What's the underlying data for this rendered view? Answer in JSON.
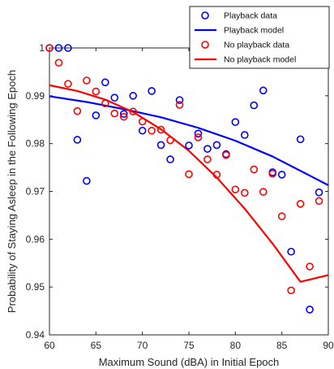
{
  "chart_data": {
    "type": "scatter",
    "xlabel": "Maximum Sound (dBA) in Initial Epoch",
    "ylabel": "Probability of Staying Asleep in the Following Epoch",
    "xlim": [
      60,
      90
    ],
    "ylim": [
      0.94,
      1.0
    ],
    "x_ticks": [
      60,
      65,
      70,
      75,
      80,
      85,
      90
    ],
    "y_ticks": [
      0.94,
      0.95,
      0.96,
      0.97,
      0.98,
      0.99,
      1.0
    ],
    "y_tick_labels": [
      "0.94",
      "0.95",
      "0.96",
      "0.97",
      "0.98",
      "0.99",
      "1"
    ],
    "legend_position": "top-right",
    "colors": {
      "playback": "#0000ff",
      "no_playback": "#ff0000"
    },
    "series": [
      {
        "name": "Playback data",
        "kind": "scatter",
        "color": "#0000ff",
        "points": [
          [
            60,
            1.0
          ],
          [
            61,
            1.0
          ],
          [
            62,
            1.0
          ],
          [
            63,
            0.9808
          ],
          [
            64,
            0.9722
          ],
          [
            65,
            0.9859
          ],
          [
            66,
            0.9928
          ],
          [
            67,
            0.9896
          ],
          [
            68,
            0.9862
          ],
          [
            69,
            0.99
          ],
          [
            70,
            0.9827
          ],
          [
            71,
            0.991
          ],
          [
            72,
            0.9797
          ],
          [
            73,
            0.9767
          ],
          [
            74,
            0.9891
          ],
          [
            75,
            0.9796
          ],
          [
            76,
            0.9821
          ],
          [
            77,
            0.9789
          ],
          [
            78,
            0.9797
          ],
          [
            79,
            0.9778
          ],
          [
            80,
            0.9845
          ],
          [
            81,
            0.9818
          ],
          [
            82,
            0.988
          ],
          [
            83,
            0.9911
          ],
          [
            84,
            0.974
          ],
          [
            85,
            0.9735
          ],
          [
            86,
            0.9574
          ],
          [
            87,
            0.9809
          ],
          [
            88,
            0.9453
          ],
          [
            89,
            0.9698
          ]
        ]
      },
      {
        "name": "Playback model",
        "kind": "line",
        "color": "#0000ff",
        "points": [
          [
            60,
            0.9899
          ],
          [
            64,
            0.9887
          ],
          [
            68,
            0.9872
          ],
          [
            72,
            0.9855
          ],
          [
            76,
            0.9833
          ],
          [
            80,
            0.9806
          ],
          [
            84,
            0.9773
          ],
          [
            88,
            0.9733
          ],
          [
            90,
            0.9713
          ]
        ]
      },
      {
        "name": "No playback data",
        "kind": "scatter",
        "color": "#ff0000",
        "points": [
          [
            60,
            1.0
          ],
          [
            61,
            0.9969
          ],
          [
            62,
            0.9925
          ],
          [
            63,
            0.9868
          ],
          [
            64,
            0.9932
          ],
          [
            65,
            0.9909
          ],
          [
            66,
            0.9884
          ],
          [
            67,
            0.9863
          ],
          [
            68,
            0.9856
          ],
          [
            69,
            0.9867
          ],
          [
            70,
            0.9846
          ],
          [
            71,
            0.9827
          ],
          [
            72,
            0.9829
          ],
          [
            73,
            0.9807
          ],
          [
            74,
            0.9881
          ],
          [
            75,
            0.9736
          ],
          [
            76,
            0.9813
          ],
          [
            77,
            0.9767
          ],
          [
            78,
            0.9735
          ],
          [
            79,
            0.9776
          ],
          [
            80,
            0.9704
          ],
          [
            81,
            0.9697
          ],
          [
            82,
            0.9746
          ],
          [
            83,
            0.9699
          ],
          [
            84,
            0.9737
          ],
          [
            85,
            0.9648
          ],
          [
            86,
            0.9493
          ],
          [
            87,
            0.9674
          ],
          [
            88,
            0.9543
          ],
          [
            89,
            0.968
          ]
        ]
      },
      {
        "name": "No playback model",
        "kind": "line",
        "color": "#ff0000",
        "points": [
          [
            60,
            0.9922
          ],
          [
            63,
            0.991
          ],
          [
            66,
            0.9892
          ],
          [
            69,
            0.9866
          ],
          [
            72,
            0.983
          ],
          [
            75,
            0.9785
          ],
          [
            78,
            0.9729
          ],
          [
            81,
            0.9664
          ],
          [
            84,
            0.9591
          ],
          [
            87,
            0.9511
          ],
          [
            90,
            0.9525
          ]
        ]
      }
    ]
  }
}
